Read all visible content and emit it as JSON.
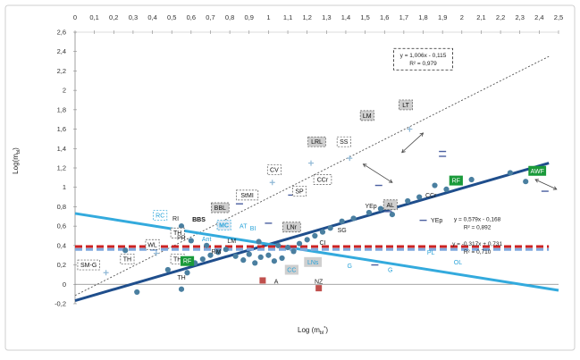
{
  "chart_data": {
    "type": "scatter",
    "xlabel": "Log (m",
    "xlabel_sub": "bl",
    "xlabel_sup": "*",
    "xlabel_tail": ")",
    "ylabel": "Log(m",
    "ylabel_sub": "bl",
    "ylabel_tail": ")",
    "xlim": [
      0,
      2.5
    ],
    "ylim": [
      -0.2,
      2.6
    ],
    "x_axis_position": "top",
    "x_ticks": [
      "0",
      "0,1",
      "0,2",
      "0,3",
      "0,4",
      "0,5",
      "0,6",
      "0,7",
      "0,8",
      "0,9",
      "1",
      "1,1",
      "1,2",
      "1,3",
      "1,4",
      "1,5",
      "1,6",
      "1,7",
      "1,8",
      "1,9",
      "2",
      "2,1",
      "2,2",
      "2,3",
      "2,4",
      "2,5"
    ],
    "y_ticks": [
      "-0,2",
      "0",
      "0,2",
      "0,4",
      "0,6",
      "0,8",
      "1",
      "1,2",
      "1,4",
      "1,6",
      "1,8",
      "2",
      "2,2",
      "2,4",
      "2,6"
    ],
    "grid": false,
    "series": [
      {
        "kind": "points",
        "color": "#4a7fa0",
        "points": [
          {
            "x": 0.32,
            "y": -0.08
          },
          {
            "x": 0.55,
            "y": -0.05
          },
          {
            "x": 0.48,
            "y": 0.15
          },
          {
            "x": 0.58,
            "y": 0.12
          },
          {
            "x": 0.62,
            "y": 0.22
          },
          {
            "x": 0.66,
            "y": 0.26
          },
          {
            "x": 0.7,
            "y": 0.3
          },
          {
            "x": 0.74,
            "y": 0.33
          },
          {
            "x": 0.78,
            "y": 0.36
          },
          {
            "x": 0.83,
            "y": 0.29
          },
          {
            "x": 0.87,
            "y": 0.25
          },
          {
            "x": 0.9,
            "y": 0.31
          },
          {
            "x": 0.93,
            "y": 0.22
          },
          {
            "x": 0.96,
            "y": 0.28
          },
          {
            "x": 1.0,
            "y": 0.3
          },
          {
            "x": 1.03,
            "y": 0.24
          },
          {
            "x": 1.07,
            "y": 0.27
          },
          {
            "x": 1.1,
            "y": 0.38
          },
          {
            "x": 1.13,
            "y": 0.34
          },
          {
            "x": 1.16,
            "y": 0.42
          },
          {
            "x": 1.2,
            "y": 0.46
          },
          {
            "x": 1.24,
            "y": 0.5
          },
          {
            "x": 1.28,
            "y": 0.54
          },
          {
            "x": 1.32,
            "y": 0.58
          },
          {
            "x": 1.38,
            "y": 0.65
          },
          {
            "x": 1.44,
            "y": 0.68
          },
          {
            "x": 1.52,
            "y": 0.74
          },
          {
            "x": 1.58,
            "y": 0.78
          },
          {
            "x": 1.64,
            "y": 0.72
          },
          {
            "x": 1.72,
            "y": 0.86
          },
          {
            "x": 1.78,
            "y": 0.9
          },
          {
            "x": 1.86,
            "y": 1.02
          },
          {
            "x": 1.92,
            "y": 0.98
          },
          {
            "x": 2.05,
            "y": 1.08
          },
          {
            "x": 2.25,
            "y": 1.15
          },
          {
            "x": 2.33,
            "y": 1.06
          },
          {
            "x": 0.26,
            "y": 0.35
          },
          {
            "x": 0.55,
            "y": 0.6
          },
          {
            "x": 0.6,
            "y": 0.45
          },
          {
            "x": 0.68,
            "y": 0.4
          },
          {
            "x": 0.95,
            "y": 0.44
          },
          {
            "x": 1.05,
            "y": 0.4
          }
        ]
      },
      {
        "kind": "red-squares",
        "color": "#c0504d",
        "points": [
          {
            "x": 0.97,
            "y": 0.04
          },
          {
            "x": 1.26,
            "y": -0.04
          }
        ]
      },
      {
        "kind": "cross-points",
        "color": "#8fb8d6",
        "points": [
          {
            "x": 0.16,
            "y": 0.12
          },
          {
            "x": 0.42,
            "y": 0.32
          },
          {
            "x": 1.02,
            "y": 1.05
          },
          {
            "x": 1.22,
            "y": 1.25
          },
          {
            "x": 1.42,
            "y": 1.3
          },
          {
            "x": 1.73,
            "y": 1.6
          }
        ]
      },
      {
        "kind": "dash-points",
        "color": "#4a5fa0",
        "points": [
          {
            "x": 1.0,
            "y": 0.63
          },
          {
            "x": 1.12,
            "y": 0.92
          },
          {
            "x": 1.57,
            "y": 1.02
          },
          {
            "x": 1.62,
            "y": 0.75
          },
          {
            "x": 1.8,
            "y": 0.66
          },
          {
            "x": 1.9,
            "y": 1.37
          },
          {
            "x": 1.9,
            "y": 1.32
          },
          {
            "x": 2.43,
            "y": 0.96
          },
          {
            "x": 1.55,
            "y": 0.2
          },
          {
            "x": 0.85,
            "y": 0.83
          }
        ]
      }
    ],
    "lines": [
      {
        "name": "y = 1,006x - 0,115",
        "slope": 1.006,
        "intercept": -0.115,
        "x_range": [
          0,
          2.45
        ],
        "color": "#555555",
        "style": "dotted"
      },
      {
        "name": "y = 0,579x - 0,168",
        "slope": 0.579,
        "intercept": -0.168,
        "x_range": [
          0,
          2.45
        ],
        "color": "#1f4e8c",
        "style": "solid"
      },
      {
        "name": "y = -0,317x + 0,731",
        "slope": -0.317,
        "intercept": 0.731,
        "x_range": [
          0,
          2.5
        ],
        "color": "#33aadd",
        "style": "solid"
      },
      {
        "name": "red dashed",
        "slope": 0,
        "intercept": 0.39,
        "x_range": [
          0,
          2.45
        ],
        "color": "#cc2222",
        "style": "dashed"
      },
      {
        "name": "blue dashed",
        "slope": 0,
        "intercept": 0.36,
        "x_range": [
          0,
          2.45
        ],
        "color": "#7fa8dd",
        "style": "dashed"
      }
    ],
    "equation_boxes": [
      {
        "line1": "y = 1,006x - 0,115",
        "line2": "R² = 0,979",
        "x": 1.8,
        "y": 2.34
      },
      {
        "line1": "y = 0,579x - 0,168",
        "line2": "R² = 0,892",
        "x": 2.08,
        "y": 0.65
      },
      {
        "line1": "y = -0,317x + 0,731",
        "line2": "R² = 0,710",
        "x": 2.08,
        "y": 0.4
      }
    ],
    "annotations": [
      {
        "text": "LT",
        "x": 1.71,
        "y": 1.85,
        "style": "gray-box"
      },
      {
        "text": "LM",
        "x": 1.51,
        "y": 1.74,
        "style": "gray-box"
      },
      {
        "text": "LRL",
        "x": 1.25,
        "y": 1.47,
        "style": "gray-box"
      },
      {
        "text": "SS",
        "x": 1.39,
        "y": 1.47,
        "style": "dashed-box"
      },
      {
        "text": "CCr",
        "x": 1.28,
        "y": 1.08,
        "style": "dashed-box"
      },
      {
        "text": "CV",
        "x": 1.03,
        "y": 1.18,
        "style": "dashed-box"
      },
      {
        "text": "SP",
        "x": 1.16,
        "y": 0.96,
        "style": "dashed-box"
      },
      {
        "text": "StMI",
        "x": 0.89,
        "y": 0.92,
        "style": "dashed-box"
      },
      {
        "text": "BBL",
        "x": 0.75,
        "y": 0.79,
        "style": "gray-box"
      },
      {
        "text": "RC",
        "x": 0.44,
        "y": 0.71,
        "style": "cyan-dashed-box"
      },
      {
        "text": "RI",
        "x": 0.52,
        "y": 0.68,
        "style": "plain"
      },
      {
        "text": "BBS",
        "x": 0.64,
        "y": 0.67,
        "style": "plain-bold"
      },
      {
        "text": "MC",
        "x": 0.77,
        "y": 0.61,
        "style": "cyan-box"
      },
      {
        "text": "AT",
        "x": 0.87,
        "y": 0.6,
        "style": "cyan"
      },
      {
        "text": "BI",
        "x": 0.92,
        "y": 0.58,
        "style": "cyan"
      },
      {
        "text": "LNr",
        "x": 1.12,
        "y": 0.59,
        "style": "gray-box"
      },
      {
        "text": "SG",
        "x": 1.38,
        "y": 0.56,
        "style": "plain"
      },
      {
        "text": "YEp",
        "x": 1.53,
        "y": 0.81,
        "style": "plain"
      },
      {
        "text": "AL",
        "x": 1.63,
        "y": 0.82,
        "style": "gray-box"
      },
      {
        "text": "CCr",
        "x": 1.84,
        "y": 0.92,
        "style": "plain"
      },
      {
        "text": "RF",
        "x": 1.97,
        "y": 1.07,
        "style": "green-box"
      },
      {
        "text": "AWF",
        "x": 2.39,
        "y": 1.17,
        "style": "green-box"
      },
      {
        "text": "YEp",
        "x": 1.87,
        "y": 0.66,
        "style": "plain"
      },
      {
        "text": "TH",
        "x": 0.53,
        "y": 0.53,
        "style": "dashed-box"
      },
      {
        "text": "PR",
        "x": 0.55,
        "y": 0.48,
        "style": "plain"
      },
      {
        "text": "Ant",
        "x": 0.68,
        "y": 0.47,
        "style": "cyan"
      },
      {
        "text": "LM",
        "x": 0.81,
        "y": 0.45,
        "style": "plain"
      },
      {
        "text": "RM",
        "x": 0.73,
        "y": 0.34,
        "style": "plain"
      },
      {
        "text": "WL",
        "x": 0.4,
        "y": 0.41,
        "style": "dashed-box"
      },
      {
        "text": "TH",
        "x": 0.53,
        "y": 0.26,
        "style": "dashed-box"
      },
      {
        "text": "RF",
        "x": 0.58,
        "y": 0.24,
        "style": "green-box"
      },
      {
        "text": "TH",
        "x": 0.27,
        "y": 0.26,
        "style": "dashed-box"
      },
      {
        "text": "SM-G",
        "x": 0.07,
        "y": 0.2,
        "style": "dashed-box"
      },
      {
        "text": "TH",
        "x": 0.55,
        "y": 0.07,
        "style": "plain"
      },
      {
        "text": "CI",
        "x": 1.28,
        "y": 0.43,
        "style": "plain"
      },
      {
        "text": "LNs",
        "x": 1.23,
        "y": 0.23,
        "style": "cyan-gray-box"
      },
      {
        "text": "CC",
        "x": 1.12,
        "y": 0.15,
        "style": "cyan-gray-box"
      },
      {
        "text": "A",
        "x": 1.04,
        "y": 0.03,
        "style": "plain"
      },
      {
        "text": "NZ",
        "x": 1.26,
        "y": 0.03,
        "style": "plain"
      },
      {
        "text": "G",
        "x": 1.42,
        "y": 0.19,
        "style": "cyan"
      },
      {
        "text": "G",
        "x": 1.63,
        "y": 0.15,
        "style": "cyan"
      },
      {
        "text": "PL",
        "x": 1.84,
        "y": 0.33,
        "style": "cyan"
      },
      {
        "text": "OL",
        "x": 1.98,
        "y": 0.23,
        "style": "cyan"
      }
    ],
    "arrows": [
      {
        "from": [
          1.8,
          1.56
        ],
        "to": [
          1.69,
          1.36
        ]
      },
      {
        "from": [
          1.49,
          1.24
        ],
        "to": [
          1.64,
          1.05
        ]
      },
      {
        "from": [
          2.38,
          1.08
        ],
        "to": [
          2.49,
          0.98
        ]
      }
    ]
  }
}
